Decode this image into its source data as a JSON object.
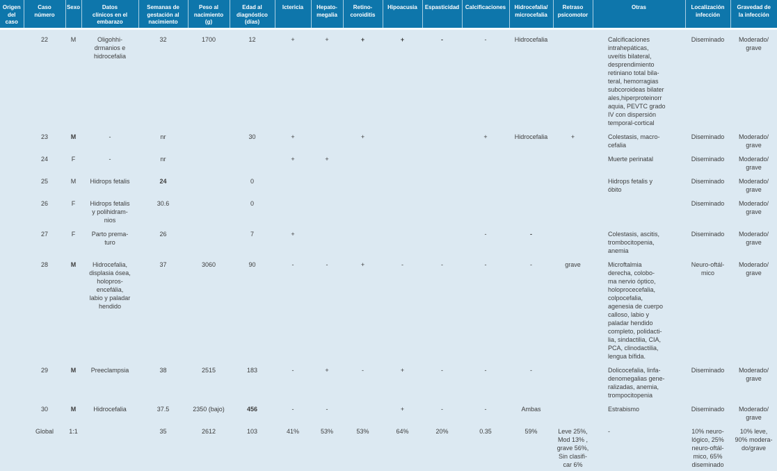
{
  "theme": {
    "header_bg": "#0e76ab",
    "header_text": "#ffffff",
    "body_bg": "#dce9f2",
    "body_text": "#3d3d3d",
    "divider": "#aacfe3"
  },
  "table": {
    "columns": [
      {
        "key": "origen",
        "label": "Origen\ndel caso",
        "width": 34
      },
      {
        "key": "caso",
        "label": "Caso\nnúmero",
        "width": 60
      },
      {
        "key": "sexo",
        "label": "Sexo",
        "width": 23
      },
      {
        "key": "datos",
        "label": "Datos\nclínicos en el\nembarazo",
        "width": 82
      },
      {
        "key": "semanas",
        "label": "Semanas de\ngestación al\nnacimiento",
        "width": 71
      },
      {
        "key": "peso",
        "label": "Peso al\nnacimiento\n(g)",
        "width": 60
      },
      {
        "key": "edad",
        "label": "Edad al\ndiagnóstico\n(días)",
        "width": 65
      },
      {
        "key": "ictericia",
        "label": "Ictericia",
        "width": 52
      },
      {
        "key": "hepato",
        "label": "Hepato-\nmegalia",
        "width": 46
      },
      {
        "key": "retino",
        "label": "Retino-\ncoroiditis",
        "width": 57
      },
      {
        "key": "hipoacusia",
        "label": "Hipoacusia",
        "width": 57
      },
      {
        "key": "espasticidad",
        "label": "Espasticidad",
        "width": 57
      },
      {
        "key": "calcificaciones",
        "label": "Calcificaciones",
        "width": 68
      },
      {
        "key": "hidrocefalia",
        "label": "Hidrocefalia/\nmicrocefalia",
        "width": 63
      },
      {
        "key": "retraso",
        "label": "Retraso\npsicomotor",
        "width": 57
      },
      {
        "key": "otras",
        "label": "Otras",
        "width": 133,
        "align": "left"
      },
      {
        "key": "localizacion",
        "label": "Localización\ninfección",
        "width": 65
      },
      {
        "key": "gravedad",
        "label": "Gravedad de\nla infección",
        "width": 67
      }
    ],
    "rows": [
      {
        "origen": "",
        "caso": "22",
        "sexo": "M",
        "datos": "Oligohhi-\ndrmanios e\nhidrocefalia",
        "semanas": "32",
        "peso": "1700",
        "edad": "12",
        "ictericia": "+",
        "hepato": "+",
        "retino": {
          "t": "+",
          "b": true
        },
        "hipoacusia": {
          "t": "+",
          "b": true
        },
        "espasticidad": {
          "t": "-",
          "b": true
        },
        "calcificaciones": "-",
        "hidrocefalia": "Hidrocefalia",
        "retraso": "",
        "otras": "Calcificaciones\nintrahepáticas,\nuveítis bilateral,\ndesprendimiento\nretiniano total bila-\nteral, hemorragias\nsubcoroideas bilater\nales,hiperproteinorr\naquia, PEVTC grado\nIV con dispersión\ntemporal-cortical",
        "localizacion": "Diseminado",
        "gravedad": "Moderado/\ngrave"
      },
      {
        "origen": "",
        "caso": "23",
        "sexo": {
          "t": "M",
          "b": true
        },
        "datos": "-",
        "semanas": "nr",
        "peso": "",
        "edad": "30",
        "ictericia": "+",
        "hepato": "",
        "retino": "+",
        "hipoacusia": "",
        "espasticidad": "",
        "calcificaciones": "+",
        "hidrocefalia": "Hidrocefalia",
        "retraso": "+",
        "otras": "Colestasis, macro-\ncefalia",
        "localizacion": "Diseminado",
        "gravedad": "Moderado/\ngrave"
      },
      {
        "origen": "",
        "caso": "24",
        "sexo": "F",
        "datos": "-",
        "semanas": "nr",
        "peso": "",
        "edad": "",
        "ictericia": "+",
        "hepato": "+",
        "retino": "",
        "hipoacusia": "",
        "espasticidad": "",
        "calcificaciones": "",
        "hidrocefalia": "",
        "retraso": "",
        "otras": "Muerte perinatal",
        "localizacion": "Diseminado",
        "gravedad": "Moderado/\ngrave"
      },
      {
        "origen": "",
        "caso": "25",
        "sexo": "M",
        "datos": "Hidrops fetalis",
        "semanas": {
          "t": "24",
          "b": true
        },
        "peso": "",
        "edad": "0",
        "ictericia": "",
        "hepato": "",
        "retino": "",
        "hipoacusia": "",
        "espasticidad": "",
        "calcificaciones": "",
        "hidrocefalia": "",
        "retraso": "",
        "otras": "Hidrops fetalis y\nóbito",
        "localizacion": "Diseminado",
        "gravedad": "Moderado/\ngrave"
      },
      {
        "origen": "",
        "caso": "26",
        "sexo": "F",
        "datos": "Hidrops fetalis\ny polihidram-\nnios",
        "semanas": "30.6",
        "peso": "",
        "edad": "0",
        "ictericia": "",
        "hepato": "",
        "retino": "",
        "hipoacusia": "",
        "espasticidad": "",
        "calcificaciones": "",
        "hidrocefalia": "",
        "retraso": "",
        "otras": "",
        "localizacion": "Diseminado",
        "gravedad": "Moderado/\ngrave"
      },
      {
        "origen": "",
        "caso": "27",
        "sexo": "F",
        "datos": "Parto prema-\nturo",
        "semanas": "26",
        "peso": "",
        "edad": "7",
        "ictericia": "+",
        "hepato": "",
        "retino": "",
        "hipoacusia": "",
        "espasticidad": "",
        "calcificaciones": "-",
        "hidrocefalia": {
          "t": "-",
          "b": true
        },
        "retraso": "",
        "otras": "Colestasis, ascitis,\ntrombocitopenia,\nanemia",
        "localizacion": "Diseminado",
        "gravedad": "Moderado/\ngrave"
      },
      {
        "origen": "",
        "caso": "28",
        "sexo": {
          "t": "M",
          "b": true
        },
        "datos": "Hidrocefalia,\ndisplasia ósea,\nholopros-\nencefália,\nlabio y paladar\nhendido",
        "semanas": "37",
        "peso": "3060",
        "edad": "90",
        "ictericia": "-",
        "hepato": "-",
        "retino": "+",
        "hipoacusia": "-",
        "espasticidad": "-",
        "calcificaciones": "-",
        "hidrocefalia": "-",
        "retraso": "grave",
        "otras": "Microftalmia\nderecha, colobo-\nma nervio óptico,\nholoprocecefalia,\ncolpocefalia,\nagenesia de cuerpo\ncalloso, labio y\npaladar hendido\ncompleto, polidacti-\nlia, sindactilia, CIA,\nPCA, clinodactilia,\nlengua bífida.",
        "localizacion": "Neuro-oftál-\nmico",
        "gravedad": "Moderado/\ngrave"
      },
      {
        "origen": "",
        "caso": "29",
        "sexo": {
          "t": "M",
          "b": true
        },
        "datos": "Preeclampsia",
        "semanas": "38",
        "peso": "2515",
        "edad": "183",
        "ictericia": "-",
        "hepato": "+",
        "retino": "-",
        "hipoacusia": "+",
        "espasticidad": "-",
        "calcificaciones": "-",
        "hidrocefalia": "-",
        "retraso": "",
        "otras": "Dolicocefalia, linfa-\ndenomegalias gene-\nralizadas, anemia,\ntrompocitopenia",
        "localizacion": "Diseminado",
        "gravedad": "Moderado/\ngrave"
      },
      {
        "origen": "",
        "caso": "30",
        "sexo": {
          "t": "M",
          "b": true
        },
        "datos": "Hidrocefalia",
        "semanas": "37.5",
        "peso": "2350 (bajo)",
        "edad": {
          "t": "456",
          "b": true
        },
        "ictericia": "-",
        "hepato": "-",
        "retino": "",
        "hipoacusia": "+",
        "espasticidad": "-",
        "calcificaciones": "-",
        "hidrocefalia": "Ambas",
        "retraso": "",
        "otras": "Estrabismo",
        "localizacion": "Diseminado",
        "gravedad": "Moderado/\ngrave"
      },
      {
        "origen": "",
        "caso": "Global",
        "sexo": "1:1",
        "datos": "",
        "semanas": "35",
        "peso": "2612",
        "edad": "103",
        "ictericia": "41%",
        "hepato": "53%",
        "retino": "53%",
        "hipoacusia": "64%",
        "espasticidad": "20%",
        "calcificaciones": "0.35",
        "hidrocefalia": "59%",
        "retraso": "Leve 25%,\nMod 13% ,\ngrave 56%,\nSin clasifi-\ncar 6%",
        "otras": "-",
        "localizacion": "10% neuro-\nlógico, 25%\nneuro-oftál-\nmico, 65%\ndiseminado",
        "gravedad": "10% leve,\n90% modera-\ndo/grave"
      }
    ]
  }
}
